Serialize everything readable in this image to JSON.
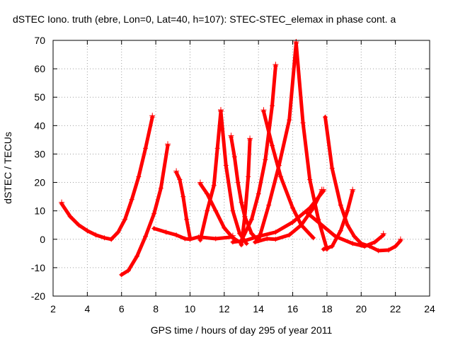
{
  "chart_data": {
    "type": "scatter",
    "title": "dSTEC Iono. truth (ebre, Lon=0, Lat=40, h=107): STEC-STEC_elemax in phase cont. a",
    "xlabel": "GPS time / hours of day 295 of year 2011",
    "ylabel": "dSTEC  / TECUs",
    "xlim": [
      2,
      24
    ],
    "ylim": [
      -20,
      70
    ],
    "xticks": [
      2,
      4,
      6,
      8,
      10,
      12,
      14,
      16,
      18,
      20,
      22,
      24
    ],
    "yticks": [
      -20,
      -10,
      0,
      10,
      20,
      30,
      40,
      50,
      60,
      70
    ],
    "grid": true,
    "color": "#ff0000",
    "marker": "plus",
    "series": [
      {
        "x": [
          2.5,
          3.0,
          3.5,
          4.0,
          4.5,
          5.0,
          5.4
        ],
        "y": [
          12.5,
          8.0,
          5.0,
          3.0,
          1.5,
          0.5,
          0.0
        ]
      },
      {
        "x": [
          5.4,
          5.8,
          6.2,
          6.6,
          7.0,
          7.4,
          7.8
        ],
        "y": [
          0.0,
          2.5,
          7.0,
          14.0,
          22.0,
          32.0,
          43.0
        ]
      },
      {
        "x": [
          6.0,
          6.4,
          6.9,
          7.4,
          7.9,
          8.3,
          8.7
        ],
        "y": [
          -12.5,
          -11.0,
          -6.0,
          1.0,
          9.0,
          18.0,
          33.0
        ]
      },
      {
        "x": [
          7.9,
          8.6,
          9.2,
          9.7,
          10.0,
          10.5,
          11.5,
          12.5
        ],
        "y": [
          3.8,
          2.5,
          1.5,
          0.2,
          0.0,
          0.8,
          0.2,
          0.8
        ]
      },
      {
        "x": [
          9.2,
          9.4,
          9.6,
          9.8,
          10.0
        ],
        "y": [
          23.5,
          21.0,
          15.0,
          7.0,
          0.5
        ]
      },
      {
        "x": [
          10.6,
          11.0,
          11.5,
          12.0,
          12.5,
          12.9
        ],
        "y": [
          19.5,
          16.0,
          10.0,
          4.0,
          0.5,
          -1.0
        ]
      },
      {
        "x": [
          10.6,
          11.0,
          11.4,
          11.6,
          11.8
        ],
        "y": [
          -0.3,
          10.0,
          19.0,
          32.0,
          45.0
        ]
      },
      {
        "x": [
          11.8,
          12.1,
          12.5,
          12.9,
          13.3
        ],
        "y": [
          45.0,
          26.0,
          10.0,
          2.0,
          -1.5
        ]
      },
      {
        "x": [
          12.4,
          12.6,
          12.8,
          13.0,
          13.2,
          13.6,
          14.0
        ],
        "y": [
          36.0,
          29.0,
          20.0,
          13.0,
          8.0,
          2.0,
          -0.5
        ]
      },
      {
        "x": [
          13.0,
          13.2,
          13.4,
          13.5
        ],
        "y": [
          -2.0,
          8.0,
          22.0,
          35.0
        ]
      },
      {
        "x": [
          12.5,
          13.2,
          14.0,
          15.0,
          16.0,
          17.0,
          17.8
        ],
        "y": [
          -1.0,
          -0.5,
          1.0,
          2.5,
          6.0,
          11.0,
          17.0
        ]
      },
      {
        "x": [
          13.0,
          13.6,
          14.0,
          14.4,
          14.8,
          15.0
        ],
        "y": [
          -0.5,
          7.0,
          16.0,
          28.0,
          47.0,
          61.0
        ]
      },
      {
        "x": [
          14.3,
          14.8,
          15.3,
          16.0,
          16.5,
          17.2
        ],
        "y": [
          45.0,
          33.0,
          22.0,
          11.0,
          5.0,
          0.5
        ]
      },
      {
        "x": [
          14.0,
          14.6,
          15.2,
          15.8,
          16.2
        ],
        "y": [
          -0.5,
          12.0,
          26.0,
          42.0,
          69.0
        ]
      },
      {
        "x": [
          16.2,
          16.6,
          17.0,
          17.5,
          18.0
        ],
        "y": [
          69.0,
          41.0,
          21.0,
          7.0,
          -3.5
        ]
      },
      {
        "x": [
          13.8,
          14.5,
          15.0,
          15.8,
          16.5,
          17.2,
          17.7
        ],
        "y": [
          -1.0,
          0.2,
          0.0,
          1.5,
          5.0,
          11.0,
          17.0
        ]
      },
      {
        "x": [
          17.9,
          18.3,
          18.8,
          19.2,
          19.6,
          20.0,
          20.5,
          21.0,
          21.6,
          22.0,
          22.3
        ],
        "y": [
          43.0,
          25.0,
          12.0,
          5.0,
          1.0,
          -1.5,
          -2.5,
          -4.0,
          -3.8,
          -2.5,
          -0.5
        ]
      },
      {
        "x": [
          17.8,
          18.3,
          18.8,
          19.2,
          19.5
        ],
        "y": [
          -3.5,
          -2.5,
          3.0,
          10.0,
          17.0
        ]
      },
      {
        "x": [
          16.8,
          17.5,
          18.5,
          19.5,
          20.2,
          20.8,
          21.3
        ],
        "y": [
          9.5,
          6.0,
          1.0,
          -1.5,
          -2.5,
          -1.0,
          1.5
        ]
      }
    ]
  }
}
